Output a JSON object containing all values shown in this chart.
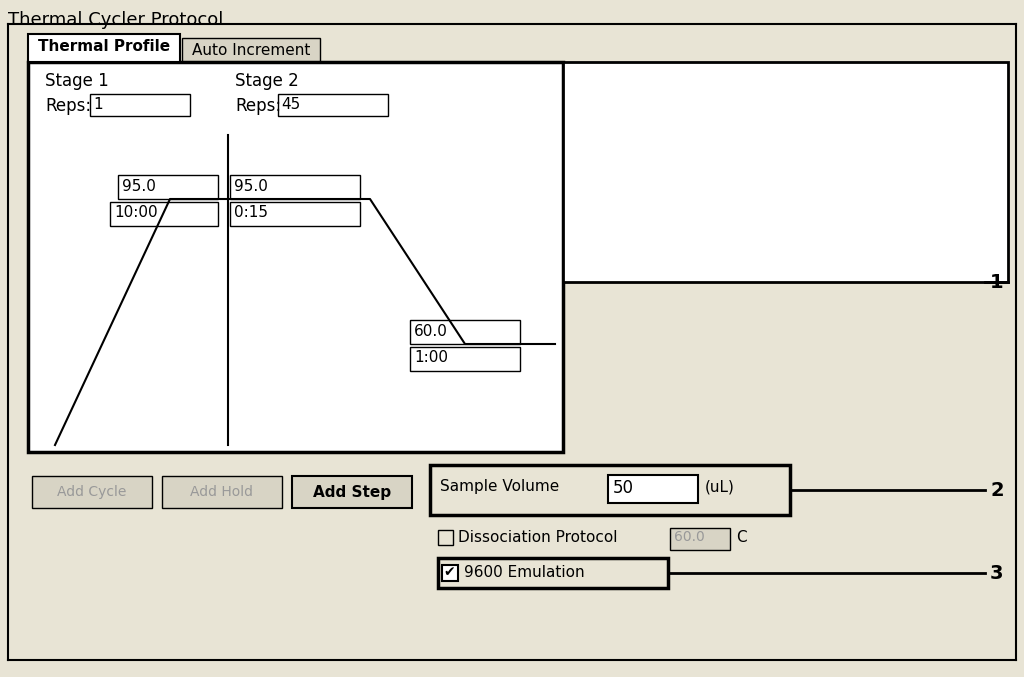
{
  "bg_color": "#e8e4d5",
  "white": "#ffffff",
  "black": "#000000",
  "gray_text": "#999999",
  "light_gray": "#d8d4c5",
  "tab_bg": "#d8d4c5",
  "title": "Thermal Cycler Protocol",
  "tab1": "Thermal Profile",
  "tab2": "Auto Increment",
  "stage1_label": "Stage 1",
  "stage2_label": "Stage 2",
  "reps1_label": "Reps:",
  "reps1_val": "1",
  "reps2_label": "Reps:",
  "reps2_val": "45",
  "temp1": "95.0",
  "temp2": "95.0",
  "time1": "10:00",
  "time2": "0:15",
  "temp3": "60.0",
  "time3": "1:00",
  "btn1": "Add Cycle",
  "btn2": "Add Hold",
  "btn3": "Add Step",
  "sv_label": "Sample Volume",
  "sv_val": "50",
  "sv_unit": "(uL)",
  "diss_label": "Dissociation Protocol",
  "diss_val": "60.0",
  "diss_unit": "C",
  "emul_label": "9600 Emulation",
  "check_mark": "✔",
  "num1": "1",
  "num2": "2",
  "num3": "3",
  "figw": 10.24,
  "figh": 6.77,
  "dpi": 100
}
